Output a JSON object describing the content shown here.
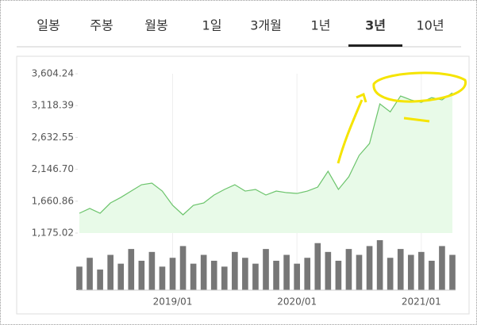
{
  "tabs": [
    "일봉",
    "주봉",
    "월봉",
    "1일",
    "3개월",
    "1년",
    "3년",
    "10년"
  ],
  "active_tab": 6,
  "chart_data": {
    "type": "area",
    "x": [
      "2018/04",
      "2018/05",
      "2018/06",
      "2018/07",
      "2018/08",
      "2018/09",
      "2018/10",
      "2018/11",
      "2018/12",
      "2019/01",
      "2019/02",
      "2019/03",
      "2019/04",
      "2019/05",
      "2019/06",
      "2019/07",
      "2019/08",
      "2019/09",
      "2019/10",
      "2019/11",
      "2019/12",
      "2020/01",
      "2020/02",
      "2020/03",
      "2020/04",
      "2020/05",
      "2020/06",
      "2020/07",
      "2020/08",
      "2020/09",
      "2020/10",
      "2020/11",
      "2020/12",
      "2021/01",
      "2021/02",
      "2021/03",
      "2021/04"
    ],
    "values": [
      1477,
      1550,
      1477,
      1634,
      1718,
      1815,
      1912,
      1936,
      1815,
      1598,
      1453,
      1598,
      1634,
      1755,
      1840,
      1912,
      1815,
      1840,
      1755,
      1815,
      1791,
      1779,
      1815,
      1876,
      2117,
      1840,
      2033,
      2359,
      2540,
      3144,
      3023,
      3265,
      3205,
      3168,
      3240,
      3205,
      3313
    ],
    "volume": [
      40,
      55,
      35,
      60,
      45,
      70,
      50,
      65,
      40,
      55,
      75,
      45,
      60,
      50,
      40,
      65,
      55,
      45,
      70,
      50,
      60,
      45,
      55,
      80,
      65,
      50,
      70,
      60,
      75,
      85,
      55,
      70,
      60,
      65,
      50,
      75,
      60
    ],
    "color": "#6cc46c",
    "fill": "#e8fae8",
    "volume_color": "#777777",
    "ylim": [
      1175.02,
      3604.24
    ],
    "yticks": [
      {
        "value": 1175.02,
        "label": "1,175.02"
      },
      {
        "value": 1660.86,
        "label": "1,660.86"
      },
      {
        "value": 2146.7,
        "label": "2,146.70"
      },
      {
        "value": 2632.55,
        "label": "2,632.55"
      },
      {
        "value": 3118.39,
        "label": "3,118.39"
      },
      {
        "value": 3604.24,
        "label": "3,604.24"
      }
    ],
    "xticks": [
      "2019/01",
      "2020/01",
      "2021/01"
    ]
  }
}
